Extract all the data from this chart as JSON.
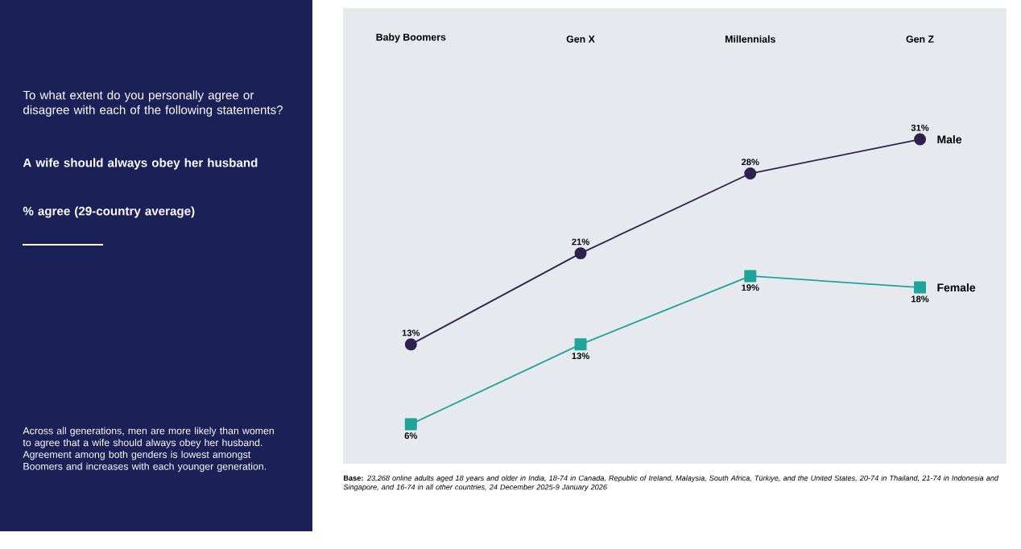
{
  "chart_data": {
    "type": "line",
    "title": "To what extent do you personally agree or disagree with each of the following statements?",
    "subtitle": "A wife should always obey her husband",
    "annotations": [
      "% agree (29-country average)",
      "Across all generations, men are more likely than women to agree that a wife should always obey her husband. Agreement among both genders is lowest amongst Boomers and increases with each younger generation.",
      "**Base:** *23,268 online adults aged 18 years and older in India, 18-74 in Canada, Republic of Ireland, Malaysia, South Africa, Türkiye, and the United States, 20-74 in Thailand, 21-74 in Indonesia and Singapore, and 16-74 in all other countries, 24 December 2025-9 January 2026*"
    ],
    "categories": [
      "Baby Boomers",
      "Gen X",
      "Millennials",
      "Gen Z"
    ],
    "series": [
      {
        "name": "Male",
        "color": "#2e2150",
        "values": [
          13,
          21,
          28,
          31
        ],
        "marker": "circle",
        "value_labels": [
          "13%",
          "21%",
          "28%",
          "31%"
        ]
      },
      {
        "name": "Female",
        "color": "#1fa39a",
        "values": [
          6,
          13,
          19,
          18
        ],
        "marker": "square",
        "value_labels": [
          "6%",
          "13%",
          "19%",
          "18%"
        ]
      }
    ],
    "line_style": "solid",
    "legend": false
  }
}
